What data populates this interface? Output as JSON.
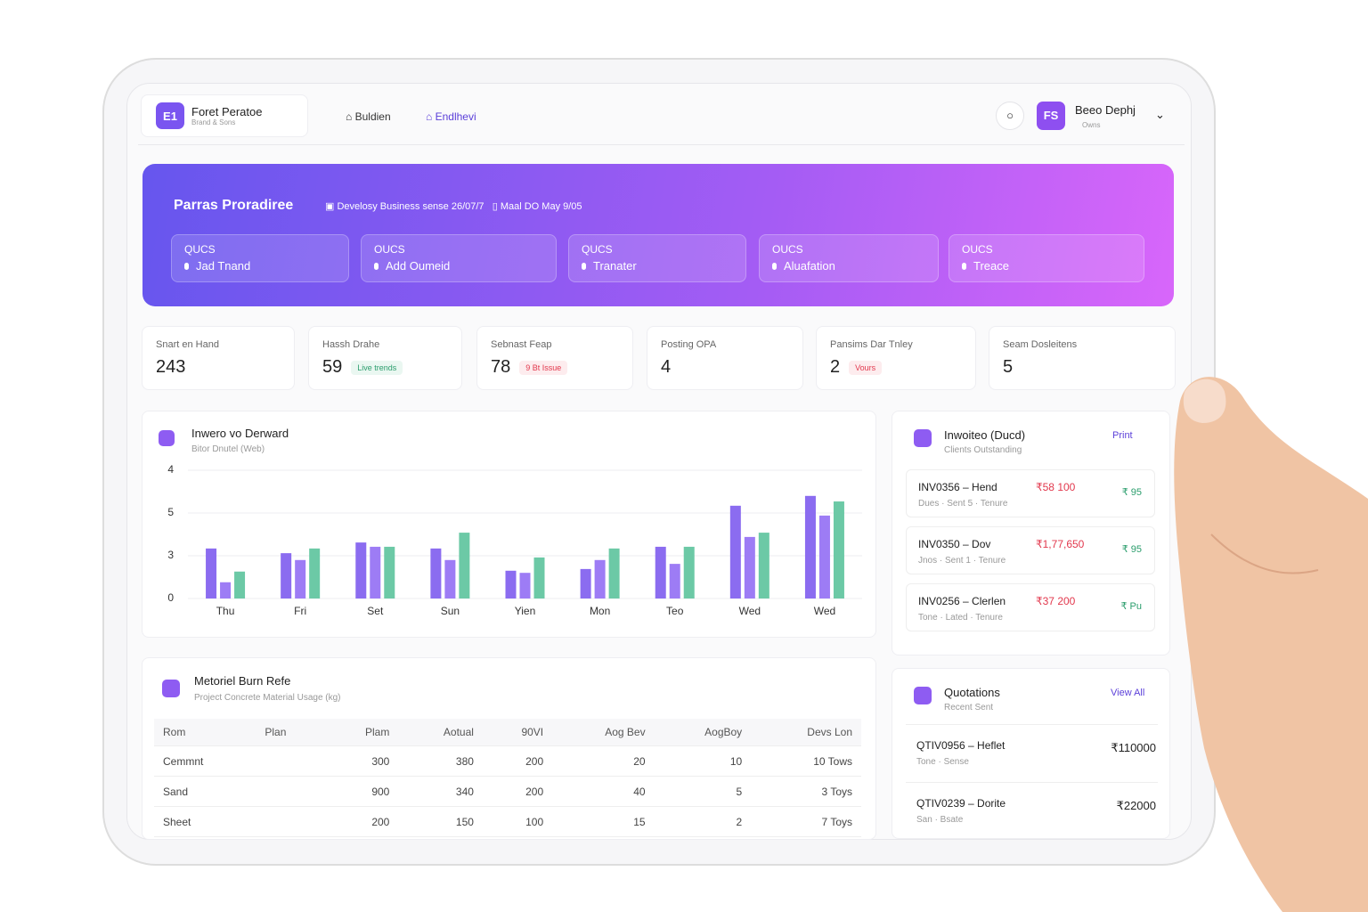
{
  "header": {
    "brand": {
      "logo": "E1",
      "name": "Foret Peratoe",
      "sub": "Brand & Sons"
    },
    "nav": [
      "Buldien",
      "Endlhevi"
    ],
    "user": {
      "initials": "FS",
      "name": "Beeo Dephj",
      "role": "Owns"
    }
  },
  "banner": {
    "title": "Parras Proradiree",
    "meta": [
      "Develosy Business sense 26/07/7",
      "Maal DO May 9/05"
    ],
    "actions": [
      {
        "label": "QUCS",
        "text": "Jad Tnand"
      },
      {
        "label": "OUCS",
        "text": "Add Oumeid"
      },
      {
        "label": "QUCS",
        "text": "Tranater"
      },
      {
        "label": "OUCS",
        "text": "Aluafation"
      },
      {
        "label": "OUCS",
        "text": "Treace"
      }
    ]
  },
  "stats": [
    {
      "label": "Snart en Hand",
      "value": 243
    },
    {
      "label": "Hassh Drahe",
      "value": 59,
      "badge": "Live trends"
    },
    {
      "label": "Sebnast Feap",
      "value": 78,
      "badge": "9 Bt Issue"
    },
    {
      "label": "Posting OPA",
      "value": 4
    },
    {
      "label": "Pansims Dar Tnley",
      "value": 2,
      "badge": "Vours"
    },
    {
      "label": "Seam Dosleitens",
      "value": 5
    }
  ],
  "chart_data": {
    "type": "bar",
    "title": "Inwero vo Derward",
    "subtitle": "Bitor Dnutel (Web)",
    "categories": [
      "Thu",
      "Fri",
      "Set",
      "Sun",
      "Yien",
      "Mon",
      "Teo",
      "Wed",
      "Wed"
    ],
    "series": [
      {
        "color": "#8b6cf0",
        "values": [
          1.17,
          1.06,
          1.31,
          1.17,
          0.65,
          0.69,
          1.21,
          2.17,
          2.4
        ]
      },
      {
        "color": "#9d7cf5",
        "values": [
          0.38,
          0.9,
          1.21,
          0.9,
          0.6,
          0.9,
          0.81,
          1.44,
          1.94
        ]
      },
      {
        "color": "#6cc9a6",
        "values": [
          0.63,
          1.17,
          1.21,
          1.54,
          0.96,
          1.17,
          1.21,
          1.54,
          2.27
        ]
      }
    ],
    "ylim": [
      0,
      3
    ],
    "yticks": [
      0,
      {
        "value": 1,
        "label": "3"
      },
      {
        "value": 2,
        "label": "5"
      },
      {
        "value": 3,
        "label": "4"
      }
    ],
    "grid": true
  },
  "invoices": {
    "title": "Inwoiteo (Ducd)",
    "subtitle": "Clients Outstanding",
    "link": "Print",
    "items": [
      {
        "id": "INV0356 – Hend",
        "amount": "₹58 100",
        "status": "₹ 95",
        "meta": "Dues · Sent 5 · Tenure"
      },
      {
        "id": "INV0350 – Dov",
        "amount": "₹1,77,650",
        "status": "₹ 95",
        "meta": "Jnos · Sent 1 · Tenure"
      },
      {
        "id": "INV0256 – Clerlen",
        "amount": "₹37 200",
        "status": "₹ Pu",
        "meta": "Tone · Lated · Tenure"
      }
    ]
  },
  "table": {
    "title": "Metoriel Burn Refe",
    "subtitle": "Project Concrete Material Usage (kg)",
    "columns": [
      "Rom",
      "Plan",
      "Plam",
      "Aotual",
      "90VI",
      "Aog Bev",
      "AogBoy",
      "Devs Lon"
    ],
    "rows": [
      [
        "Cemmnt",
        null,
        "300",
        "380",
        "200",
        "20",
        "10",
        "10 Tows"
      ],
      [
        "Sand",
        null,
        "900",
        "340",
        "200",
        "40",
        "5",
        "3 Toys"
      ],
      [
        "Sheet",
        null,
        "200",
        "150",
        "100",
        "15",
        "2",
        "7 Toys"
      ]
    ]
  },
  "quotations": {
    "title": "Quotations",
    "subtitle": "Recent Sent",
    "link": "View All",
    "items": [
      {
        "id": "QTIV0956 – Heflet",
        "amount": "₹110000",
        "meta": "Tone · Sense"
      },
      {
        "id": "QTIV0239 – Dorite",
        "amount": "₹22000",
        "meta": "San · Bsate"
      }
    ]
  }
}
